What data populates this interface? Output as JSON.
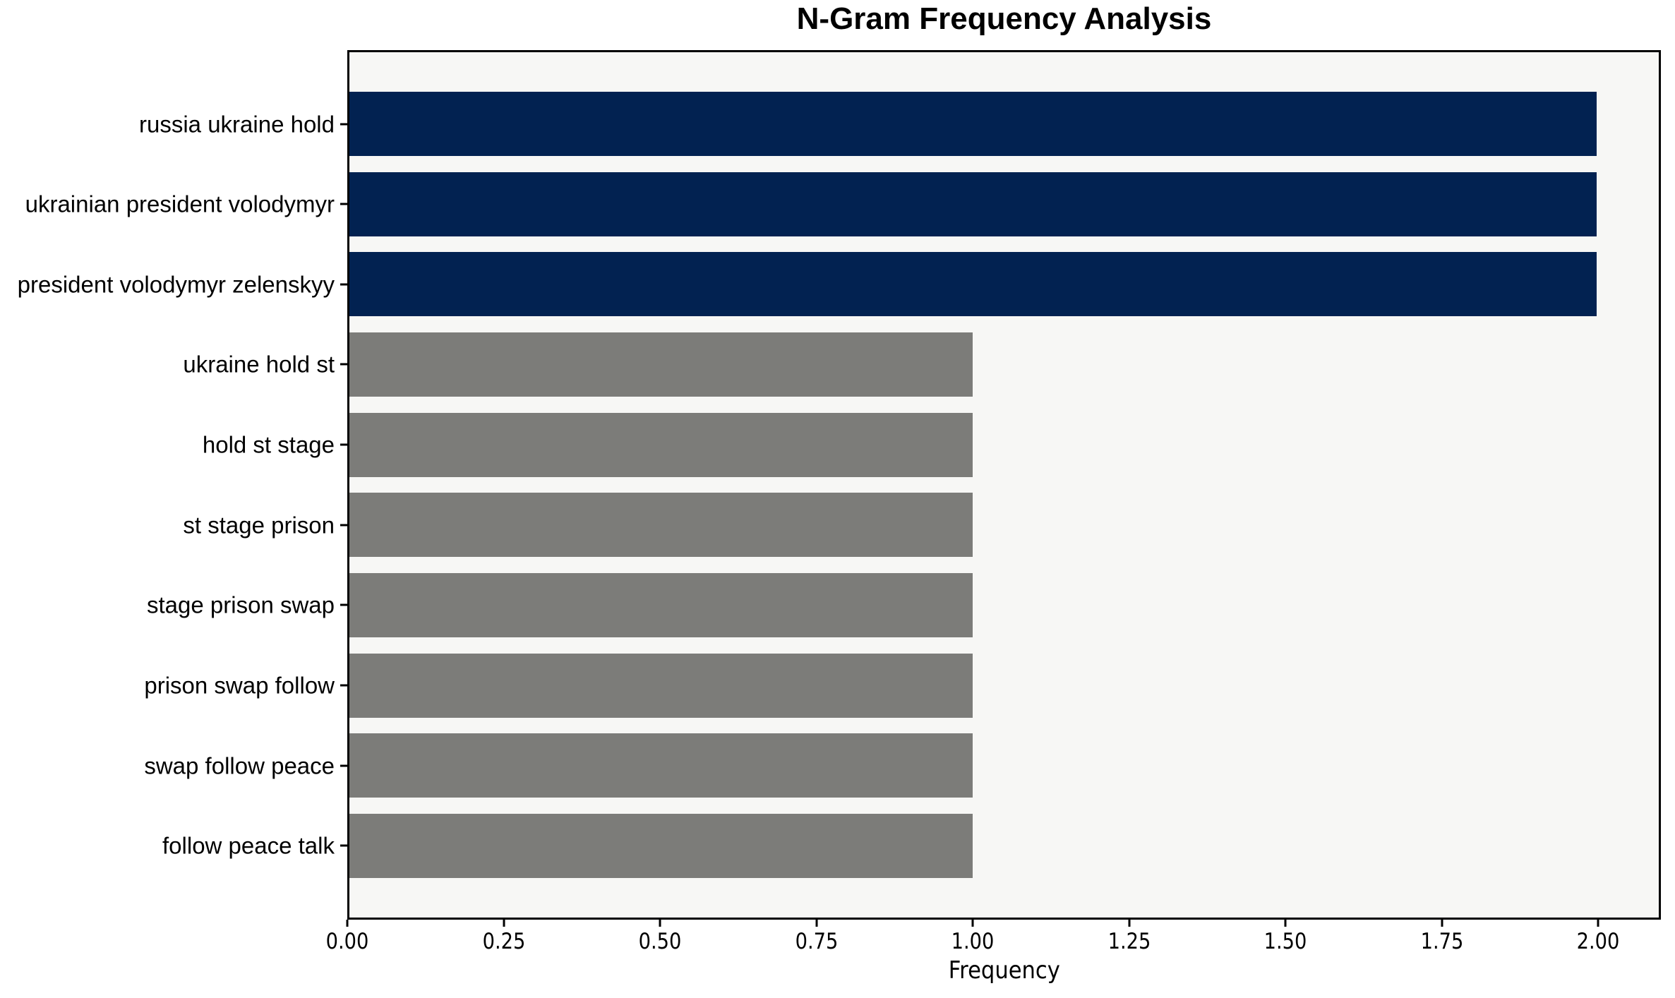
{
  "chart": {
    "title": "N-Gram Frequency Analysis",
    "xlabel": "Frequency"
  },
  "chart_data": {
    "type": "bar",
    "orientation": "horizontal",
    "title": "N-Gram Frequency Analysis",
    "xlabel": "Frequency",
    "ylabel": "",
    "categories": [
      "russia ukraine hold",
      "ukrainian president volodymyr",
      "president volodymyr zelenskyy",
      "ukraine hold st",
      "hold st stage",
      "st stage prison",
      "stage prison swap",
      "prison swap follow",
      "swap follow peace",
      "follow peace talk"
    ],
    "values": [
      2,
      2,
      2,
      1,
      1,
      1,
      1,
      1,
      1,
      1
    ],
    "bar_colors": [
      "#022251",
      "#022251",
      "#022251",
      "#7c7c79",
      "#7c7c79",
      "#7c7c79",
      "#7c7c79",
      "#7c7c79",
      "#7c7c79",
      "#7c7c79"
    ],
    "xlim": [
      0,
      2.1
    ],
    "xticks": [
      0.0,
      0.25,
      0.5,
      0.75,
      1.0,
      1.25,
      1.5,
      1.75,
      2.0
    ],
    "xtick_labels": [
      "0.00",
      "0.25",
      "0.50",
      "0.75",
      "1.00",
      "1.25",
      "1.50",
      "1.75",
      "2.00"
    ],
    "grid": false,
    "legend": null,
    "colors": {
      "highlight_bar": "#022251",
      "default_bar": "#7c7c79",
      "plot_background": "#f7f7f5",
      "figure_background": "#ffffff",
      "frame": "#000000",
      "text": "#000000"
    }
  }
}
